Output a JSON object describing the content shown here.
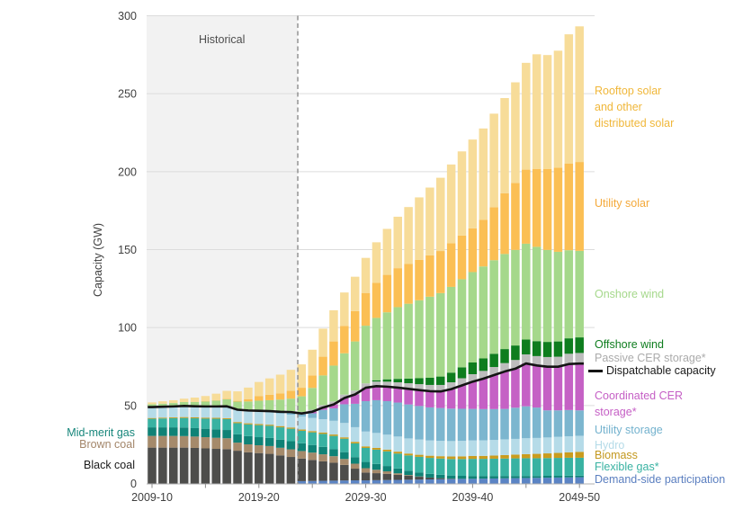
{
  "figure": {
    "historical_label": "Historical",
    "y_axis_label": "Capacity (GW)"
  },
  "labels_left": {
    "mid_merit": {
      "text": "Mid-merit gas",
      "color": "#17867B"
    },
    "brown_coal": {
      "text": "Brown coal",
      "color": "#A3866A"
    },
    "black_coal": {
      "text": "Black coal",
      "color": "#1A1A1A"
    }
  },
  "legend_right": {
    "rooftop": {
      "lines": [
        "Rooftop solar",
        "and other",
        "distributed solar"
      ],
      "color": "#F0B73A"
    },
    "utility_solar": {
      "lines": [
        "Utility solar"
      ],
      "color": "#F4A93A"
    },
    "onshore": {
      "lines": [
        "Onshore wind"
      ],
      "color": "#A5D88B"
    },
    "offshore": {
      "lines": [
        "Offshore wind"
      ],
      "color": "#0E7D1E"
    },
    "passive": {
      "lines": [
        "Passive CER storage*"
      ],
      "color": "#ABABAB"
    },
    "dispatchable": {
      "lines": [
        "Dispatchable capacity"
      ],
      "color": "#1A1A1A"
    },
    "coordinated": {
      "lines": [
        "Coordinated CER",
        "storage*"
      ],
      "color": "#C55FC5"
    },
    "utility_storage": {
      "lines": [
        "Utility storage"
      ],
      "color": "#73B2CE"
    },
    "hydro": {
      "lines": [
        "Hydro"
      ],
      "color": "#B5DBE8"
    },
    "biomass": {
      "lines": [
        "Biomass"
      ],
      "color": "#C3981F"
    },
    "flexible": {
      "lines": [
        "Flexible gas*"
      ],
      "color": "#38B2A2"
    },
    "demand": {
      "lines": [
        "Demand-side participation"
      ],
      "color": "#5B7FC0"
    }
  },
  "chart_data": {
    "type": "bar",
    "subtype": "stacked-bar-with-line",
    "unit": "GW",
    "title": "",
    "xlabel": "",
    "ylabel": "Capacity (GW)",
    "ylim": [
      0,
      300
    ],
    "grid": "horizontal",
    "historical": {
      "label": "Historical",
      "boundary_after_index": 13
    },
    "x_categories": [
      "2009-10",
      "2010-11",
      "2011-12",
      "2012-13",
      "2013-14",
      "2014-15",
      "2015-16",
      "2016-17",
      "2017-18",
      "2018-19",
      "2019-20",
      "2020-21",
      "2021-22",
      "2022-23",
      "2023-24",
      "2024-25",
      "2025-26",
      "2026-27",
      "2027-28",
      "2028-29",
      "2029-30",
      "2030-31",
      "2031-32",
      "2032-33",
      "2033-34",
      "2034-35",
      "2035-36",
      "2036-37",
      "2037-38",
      "2038-39",
      "2039-40",
      "2040-41",
      "2041-42",
      "2042-43",
      "2043-44",
      "2044-45",
      "2045-46",
      "2046-47",
      "2047-48",
      "2048-49",
      "2049-50"
    ],
    "x_axis": {
      "tick_labels": [
        "2009-10",
        "2019-20",
        "2029-30",
        "2039-40",
        "2049-50"
      ],
      "tick_indices": [
        0,
        10,
        20,
        30,
        40
      ],
      "minor_tick_indices": [
        5,
        15,
        25,
        35
      ]
    },
    "y_axis": {
      "ticks": [
        0,
        50,
        100,
        150,
        200,
        250,
        300
      ]
    },
    "series": [
      {
        "id": "demand-side-participation",
        "label": "Demand-side participation",
        "color": "#5B84C4",
        "values": [
          0,
          0,
          0,
          0,
          0,
          0,
          0,
          0,
          0,
          0,
          0,
          0,
          0,
          0,
          1.5,
          1.6,
          1.7,
          1.8,
          1.9,
          2,
          2,
          2.1,
          2.2,
          2.3,
          2.4,
          2.5,
          2.6,
          2.7,
          2.8,
          2.9,
          3,
          3.1,
          3.2,
          3.3,
          3.4,
          3.5,
          3.6,
          3.7,
          3.8,
          3.9,
          4
        ]
      },
      {
        "id": "black-coal",
        "label": "Black coal",
        "color": "#4D4D4B",
        "values": [
          23,
          23,
          23,
          23,
          22.8,
          22.5,
          22.2,
          22,
          21,
          20,
          19.5,
          19,
          18,
          17,
          14.5,
          13.5,
          12.5,
          11.5,
          10,
          7.5,
          5,
          4.5,
          4,
          3.2,
          2.5,
          1.8,
          1.2,
          0.7,
          0.3,
          0.1,
          0,
          0,
          0,
          0,
          0,
          0,
          0,
          0,
          0,
          0,
          0
        ]
      },
      {
        "id": "brown-coal",
        "label": "Brown coal",
        "color": "#A58A6B",
        "values": [
          7.5,
          7.5,
          7.5,
          7.4,
          7.3,
          7.2,
          7.1,
          7,
          5.2,
          5.1,
          5,
          5,
          4.9,
          4.9,
          4.8,
          4.7,
          4.5,
          4.2,
          3.8,
          3.2,
          2.8,
          2.2,
          1.6,
          1,
          0.5,
          0.2,
          0,
          0,
          0,
          0,
          0,
          0,
          0,
          0,
          0,
          0,
          0,
          0,
          0,
          0,
          0
        ]
      },
      {
        "id": "mid-merit-gas",
        "label": "Mid-merit gas",
        "color": "#0F8276",
        "values": [
          5.5,
          5.5,
          5.5,
          5.5,
          5.4,
          5.4,
          5.4,
          5.3,
          5.3,
          5.3,
          5.2,
          5.2,
          5.2,
          5.2,
          5,
          4.9,
          4.8,
          4.6,
          4.4,
          4.2,
          4,
          3.7,
          3.4,
          3.1,
          2.8,
          2.6,
          2.4,
          2.2,
          2,
          1.9,
          1.8,
          1.7,
          1.6,
          1.5,
          1.4,
          1.3,
          1.2,
          1.2,
          1.1,
          1.1,
          1
        ]
      },
      {
        "id": "flexible-gas",
        "label": "Flexible gas*",
        "color": "#38B2A2",
        "values": [
          5.5,
          5.7,
          5.9,
          6.1,
          6.3,
          6.5,
          6.8,
          7,
          7.2,
          7.5,
          7.7,
          7.8,
          7.9,
          8,
          8,
          8.1,
          8.3,
          8.4,
          8.6,
          8.8,
          9,
          9.2,
          9.4,
          9.6,
          9.8,
          10,
          10.2,
          10.4,
          10.6,
          10.8,
          11,
          11,
          11.1,
          11.2,
          11.3,
          11.4,
          11.4,
          11.4,
          11.5,
          11.5,
          11.5
        ]
      },
      {
        "id": "biomass",
        "label": "Biomass",
        "color": "#C99C1E",
        "values": [
          0.5,
          0.5,
          0.5,
          0.6,
          0.6,
          0.6,
          0.6,
          0.6,
          0.7,
          0.7,
          0.7,
          0.7,
          0.8,
          0.8,
          0.8,
          0.8,
          0.9,
          0.9,
          0.9,
          1,
          1,
          1.1,
          1.1,
          1.2,
          1.2,
          1.3,
          1.4,
          1.5,
          1.6,
          1.7,
          1.8,
          1.9,
          2,
          2.2,
          2.4,
          2.6,
          2.8,
          3,
          3.2,
          3.5,
          3.8
        ]
      },
      {
        "id": "hydro",
        "label": "Hydro",
        "color": "#B5DBE8",
        "values": [
          7,
          7,
          7,
          7.1,
          7.1,
          7.2,
          7.3,
          7.5,
          7.7,
          7.9,
          8,
          8,
          8.1,
          8.2,
          8.3,
          8.4,
          8.5,
          8.8,
          9.2,
          9.4,
          9.5,
          9.6,
          9.6,
          9.7,
          9.7,
          9.8,
          9.8,
          9.9,
          9.9,
          10,
          10,
          10,
          10,
          10.1,
          10.1,
          10.2,
          10.2,
          10.2,
          10.3,
          10.3,
          10.3
        ]
      },
      {
        "id": "utility-storage",
        "label": "Utility storage",
        "color": "#7CB6CF",
        "values": [
          0,
          0,
          0,
          0,
          0,
          0,
          0,
          0.1,
          0.2,
          0.3,
          0.5,
          0.7,
          1,
          1.5,
          1.5,
          3,
          6,
          8,
          12,
          15,
          19.5,
          21,
          21.5,
          21.8,
          21.8,
          21.5,
          21.2,
          21,
          20.8,
          20.5,
          20.2,
          20,
          19.8,
          19.5,
          20,
          20.5,
          19.5,
          17.4,
          17,
          16.8,
          16.3
        ]
      },
      {
        "id": "coordinated-cer-storage",
        "label": "Coordinated CER storage*",
        "color": "#C561C5",
        "values": [
          0,
          0,
          0,
          0,
          0,
          0,
          0,
          0,
          0,
          0,
          0,
          0,
          0.1,
          0.2,
          0.5,
          1,
          1.5,
          2.5,
          4,
          6,
          8.6,
          9,
          9.3,
          9.6,
          10,
          10.2,
          10.4,
          10.6,
          12.5,
          15,
          17.5,
          19.5,
          21.8,
          24,
          25,
          27.5,
          27,
          28,
          28,
          29.5,
          30
        ]
      },
      {
        "id": "passive-cer-storage",
        "label": "Passive CER storage*",
        "color": "#BDBDBD",
        "values": [
          0,
          0,
          0,
          0,
          0,
          0,
          0,
          0,
          0,
          0,
          0,
          0,
          0.3,
          0.6,
          1,
          1.3,
          1.6,
          1.9,
          2.2,
          2.5,
          2.8,
          3,
          3.2,
          3.4,
          3.6,
          3.8,
          4,
          4.2,
          4.4,
          4.6,
          4.8,
          5,
          5.2,
          5.4,
          5.6,
          5.8,
          6,
          6.2,
          6.4,
          6.6,
          6.8
        ]
      },
      {
        "id": "offshore-wind",
        "label": "Offshore wind",
        "color": "#0E7D1E",
        "values": [
          0,
          0,
          0,
          0,
          0,
          0,
          0,
          0,
          0,
          0,
          0,
          0,
          0,
          0,
          0,
          0,
          0,
          0,
          0,
          0,
          0,
          0.8,
          1.5,
          2.2,
          3,
          3.8,
          4.6,
          5.4,
          6.2,
          7,
          7.5,
          8,
          8.5,
          9,
          9.3,
          9.5,
          9.6,
          9.7,
          9.8,
          9.9,
          10
        ]
      },
      {
        "id": "onshore-wind",
        "label": "Onshore wind",
        "color": "#A5D88B",
        "values": [
          1.8,
          2,
          2.2,
          2.5,
          2.8,
          3.2,
          3.8,
          4.5,
          5.2,
          5.8,
          6.5,
          7,
          7.5,
          8,
          10,
          14,
          19,
          23,
          26.5,
          31.5,
          37,
          40,
          43,
          46,
          48,
          50,
          52,
          53.5,
          55,
          56.5,
          58,
          59,
          60,
          61,
          61.3,
          61.5,
          60.5,
          59,
          57.5,
          56.5,
          55.5
        ]
      },
      {
        "id": "utility-solar",
        "label": "Utility solar",
        "color": "#FBBF54",
        "values": [
          0,
          0,
          0,
          0,
          0.1,
          0.2,
          0.3,
          0.4,
          0.5,
          1.5,
          3,
          3.5,
          4,
          5,
          5.5,
          8,
          12,
          15.5,
          17.5,
          19.5,
          21,
          22.5,
          24,
          25,
          25.5,
          26,
          26.5,
          27,
          28,
          28,
          28,
          30,
          34,
          39,
          43,
          47.5,
          50,
          52,
          54,
          55.5,
          57
        ]
      },
      {
        "id": "rooftop-solar",
        "label": "Rooftop solar and other distributed solar",
        "color": "#F7DC99",
        "values": [
          1.2,
          1.5,
          1.8,
          2.2,
          2.7,
          3.3,
          4.1,
          5,
          6.1,
          7.4,
          9,
          10.5,
          12,
          13.5,
          15,
          16.5,
          18,
          20,
          21.5,
          22,
          22.5,
          26,
          29.5,
          33,
          36.5,
          40,
          43.5,
          47,
          50.5,
          54,
          57,
          58.5,
          60,
          61,
          64.5,
          68.5,
          73.5,
          73,
          75,
          83,
          87
        ]
      }
    ],
    "line": {
      "id": "dispatchable-capacity",
      "label": "Dispatchable capacity",
      "color": "#141414",
      "values": [
        49,
        49.2,
        49.4,
        49.7,
        49.5,
        49.4,
        49.4,
        49.5,
        47.3,
        46.8,
        46.6,
        46.4,
        46,
        45.8,
        44.9,
        46,
        48.7,
        50.7,
        54.8,
        57.1,
        61.4,
        62.4,
        62.1,
        61.5,
        60.7,
        59.9,
        59.2,
        59,
        60.5,
        62.9,
        65.3,
        67.2,
        69.5,
        71.8,
        73.6,
        77,
        75.7,
        74.9,
        74.9,
        76.6,
        76.9
      ]
    }
  }
}
